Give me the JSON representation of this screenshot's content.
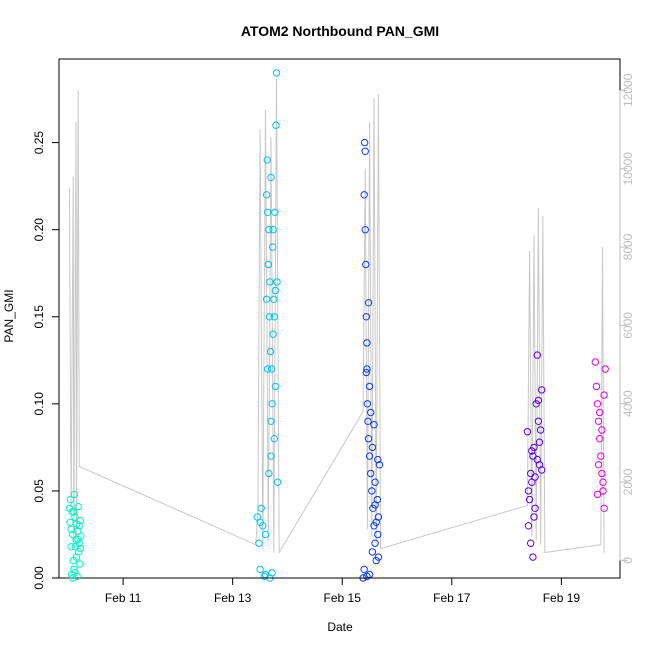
{
  "chart_data": {
    "type": "scatter",
    "title": "ATOM2 Northbound PAN_GMI",
    "xlabel": "Date",
    "ylabel": "PAN_GMI",
    "x_ticks": [
      {
        "label": "Feb 11",
        "day": 11
      },
      {
        "label": "Feb 13",
        "day": 13
      },
      {
        "label": "Feb 15",
        "day": 15
      },
      {
        "label": "Feb 17",
        "day": 17
      },
      {
        "label": "Feb 19",
        "day": 19
      }
    ],
    "y_left_ticks": [
      "0.00",
      "0.05",
      "0.10",
      "0.15",
      "0.20",
      "0.25"
    ],
    "y_right_ticks": [
      "0",
      "2000",
      "4000",
      "6000",
      "8000",
      "10000",
      "12000"
    ],
    "xlim": [
      "Feb 9.83",
      "Feb 20.07"
    ],
    "ylim_left": [
      0,
      0.298
    ],
    "ylim_right": [
      -450,
      12800
    ],
    "right_axis_color": "#bebebe",
    "altitude_line_color": "#c8c8c8",
    "series": [
      {
        "color": "#00f5c9",
        "points": [
          [
            10.02,
            0.04
          ],
          [
            10.03,
            0.032
          ],
          [
            10.04,
            0.045
          ],
          [
            10.05,
            0.028
          ],
          [
            10.06,
            0.002
          ],
          [
            10.07,
            0.038
          ],
          [
            10.08,
            0.025
          ],
          [
            10.09,
            0.01
          ],
          [
            10.1,
            0.005
          ],
          [
            10.11,
            0.048
          ],
          [
            10.12,
            0.035
          ],
          [
            10.13,
            0.018
          ],
          [
            10.14,
            0.022
          ],
          [
            10.15,
            0.031
          ],
          [
            10.16,
            0.001
          ],
          [
            10.17,
            0.027
          ],
          [
            10.18,
            0.041
          ],
          [
            10.19,
            0.015
          ],
          [
            10.2,
            0.02
          ],
          [
            10.21,
            0.008
          ],
          [
            10.22,
            0.033
          ],
          [
            10.23,
            0.024
          ],
          [
            10.05,
            0.018
          ],
          [
            10.1,
            0.038
          ],
          [
            10.15,
            0.012
          ],
          [
            10.2,
            0.03
          ],
          [
            10.08,
            0.0
          ],
          [
            10.12,
            0.003
          ],
          [
            10.18,
            0.022
          ],
          [
            10.22,
            0.017
          ]
        ]
      },
      {
        "color": "#00c3f0",
        "points": [
          [
            13.45,
            0.035
          ],
          [
            13.48,
            0.02
          ],
          [
            13.5,
            0.005
          ],
          [
            13.52,
            0.04
          ],
          [
            13.55,
            0.03
          ],
          [
            13.58,
            0.001
          ],
          [
            13.6,
            0.025
          ],
          [
            13.62,
            0.22
          ],
          [
            13.63,
            0.24
          ],
          [
            13.64,
            0.21
          ],
          [
            13.65,
            0.18
          ],
          [
            13.66,
            0.2
          ],
          [
            13.67,
            0.15
          ],
          [
            13.68,
            0.17
          ],
          [
            13.69,
            0.13
          ],
          [
            13.7,
            0.23
          ],
          [
            13.71,
            0.12
          ],
          [
            13.72,
            0.1
          ],
          [
            13.73,
            0.19
          ],
          [
            13.74,
            0.14
          ],
          [
            13.75,
            0.16
          ],
          [
            13.76,
            0.08
          ],
          [
            13.77,
            0.21
          ],
          [
            13.78,
            0.11
          ],
          [
            13.79,
            0.26
          ],
          [
            13.8,
            0.29
          ],
          [
            13.82,
            0.055
          ],
          [
            13.81,
            0.17
          ],
          [
            13.62,
            0.16
          ],
          [
            13.66,
            0.06
          ],
          [
            13.7,
            0.09
          ],
          [
            13.74,
            0.2
          ],
          [
            13.78,
            0.165
          ],
          [
            13.6,
            0.002
          ],
          [
            13.68,
            0.0
          ],
          [
            13.72,
            0.003
          ],
          [
            13.76,
            0.15
          ],
          [
            13.64,
            0.12
          ],
          [
            13.7,
            0.07
          ],
          [
            13.5,
            0.032
          ]
        ]
      },
      {
        "color": "#0a3cf5",
        "points": [
          [
            15.38,
            0.0
          ],
          [
            15.4,
            0.22
          ],
          [
            15.41,
            0.25
          ],
          [
            15.42,
            0.2
          ],
          [
            15.43,
            0.18
          ],
          [
            15.44,
            0.15
          ],
          [
            15.45,
            0.12
          ],
          [
            15.46,
            0.1
          ],
          [
            15.47,
            0.09
          ],
          [
            15.48,
            0.08
          ],
          [
            15.5,
            0.07
          ],
          [
            15.52,
            0.06
          ],
          [
            15.54,
            0.05
          ],
          [
            15.56,
            0.04
          ],
          [
            15.58,
            0.03
          ],
          [
            15.6,
            0.02
          ],
          [
            15.62,
            0.01
          ],
          [
            15.64,
            0.045
          ],
          [
            15.66,
            0.035
          ],
          [
            15.68,
            0.065
          ],
          [
            15.42,
            0.245
          ],
          [
            15.45,
            0.135
          ],
          [
            15.5,
            0.11
          ],
          [
            15.55,
            0.075
          ],
          [
            15.6,
            0.055
          ],
          [
            15.65,
            0.025
          ],
          [
            15.4,
            0.005
          ],
          [
            15.45,
            0.001
          ],
          [
            15.5,
            0.002
          ],
          [
            15.55,
            0.015
          ],
          [
            15.6,
            0.042
          ],
          [
            15.65,
            0.068
          ],
          [
            15.48,
            0.158
          ],
          [
            15.52,
            0.095
          ],
          [
            15.58,
            0.088
          ],
          [
            15.62,
            0.032
          ],
          [
            15.44,
            0.118
          ],
          [
            15.66,
            0.012
          ]
        ]
      },
      {
        "color": "#5a00f0",
        "points": [
          [
            18.38,
            0.084
          ],
          [
            18.4,
            0.05
          ],
          [
            18.42,
            0.045
          ],
          [
            18.44,
            0.06
          ],
          [
            18.46,
            0.055
          ],
          [
            18.48,
            0.07
          ],
          [
            18.5,
            0.075
          ],
          [
            18.52,
            0.04
          ],
          [
            18.54,
            0.1
          ],
          [
            18.56,
            0.128
          ],
          [
            18.58,
            0.09
          ],
          [
            18.6,
            0.065
          ],
          [
            18.62,
            0.085
          ],
          [
            18.64,
            0.108
          ],
          [
            18.4,
            0.03
          ],
          [
            18.44,
            0.02
          ],
          [
            18.48,
            0.012
          ],
          [
            18.52,
            0.058
          ],
          [
            18.56,
            0.068
          ],
          [
            18.6,
            0.078
          ],
          [
            18.64,
            0.062
          ],
          [
            18.46,
            0.073
          ],
          [
            18.5,
            0.035
          ],
          [
            18.58,
            0.102
          ]
        ]
      },
      {
        "color": "#e600e6",
        "points": [
          [
            19.62,
            0.124
          ],
          [
            19.64,
            0.11
          ],
          [
            19.66,
            0.1
          ],
          [
            19.68,
            0.09
          ],
          [
            19.7,
            0.08
          ],
          [
            19.72,
            0.07
          ],
          [
            19.74,
            0.06
          ],
          [
            19.76,
            0.05
          ],
          [
            19.78,
            0.04
          ],
          [
            19.8,
            0.12
          ],
          [
            19.66,
            0.048
          ],
          [
            19.7,
            0.095
          ],
          [
            19.74,
            0.085
          ],
          [
            19.78,
            0.105
          ],
          [
            19.68,
            0.065
          ],
          [
            19.76,
            0.055
          ]
        ]
      }
    ],
    "altitude_line": [
      [
        10.02,
        9500
      ],
      [
        10.05,
        1200
      ],
      [
        10.09,
        9800
      ],
      [
        10.1,
        300
      ],
      [
        10.14,
        11200
      ],
      [
        10.15,
        600
      ],
      [
        10.18,
        12000
      ],
      [
        10.2,
        2400
      ],
      [
        13.42,
        400
      ],
      [
        13.46,
        1200
      ],
      [
        13.5,
        11000
      ],
      [
        13.55,
        300
      ],
      [
        13.6,
        11500
      ],
      [
        13.65,
        500
      ],
      [
        13.7,
        10800
      ],
      [
        13.75,
        200
      ],
      [
        13.8,
        12300
      ],
      [
        13.85,
        200
      ],
      [
        15.38,
        3800
      ],
      [
        15.42,
        10000
      ],
      [
        15.46,
        800
      ],
      [
        15.5,
        11200
      ],
      [
        15.54,
        600
      ],
      [
        15.58,
        11800
      ],
      [
        15.62,
        400
      ],
      [
        15.66,
        11900
      ],
      [
        15.7,
        300
      ],
      [
        18.38,
        1400
      ],
      [
        18.42,
        7900
      ],
      [
        18.46,
        600
      ],
      [
        18.5,
        8300
      ],
      [
        18.54,
        500
      ],
      [
        18.58,
        9000
      ],
      [
        18.62,
        400
      ],
      [
        18.66,
        8800
      ],
      [
        18.7,
        200
      ],
      [
        19.72,
        400
      ],
      [
        19.75,
        8000
      ],
      [
        19.78,
        200
      ]
    ]
  }
}
